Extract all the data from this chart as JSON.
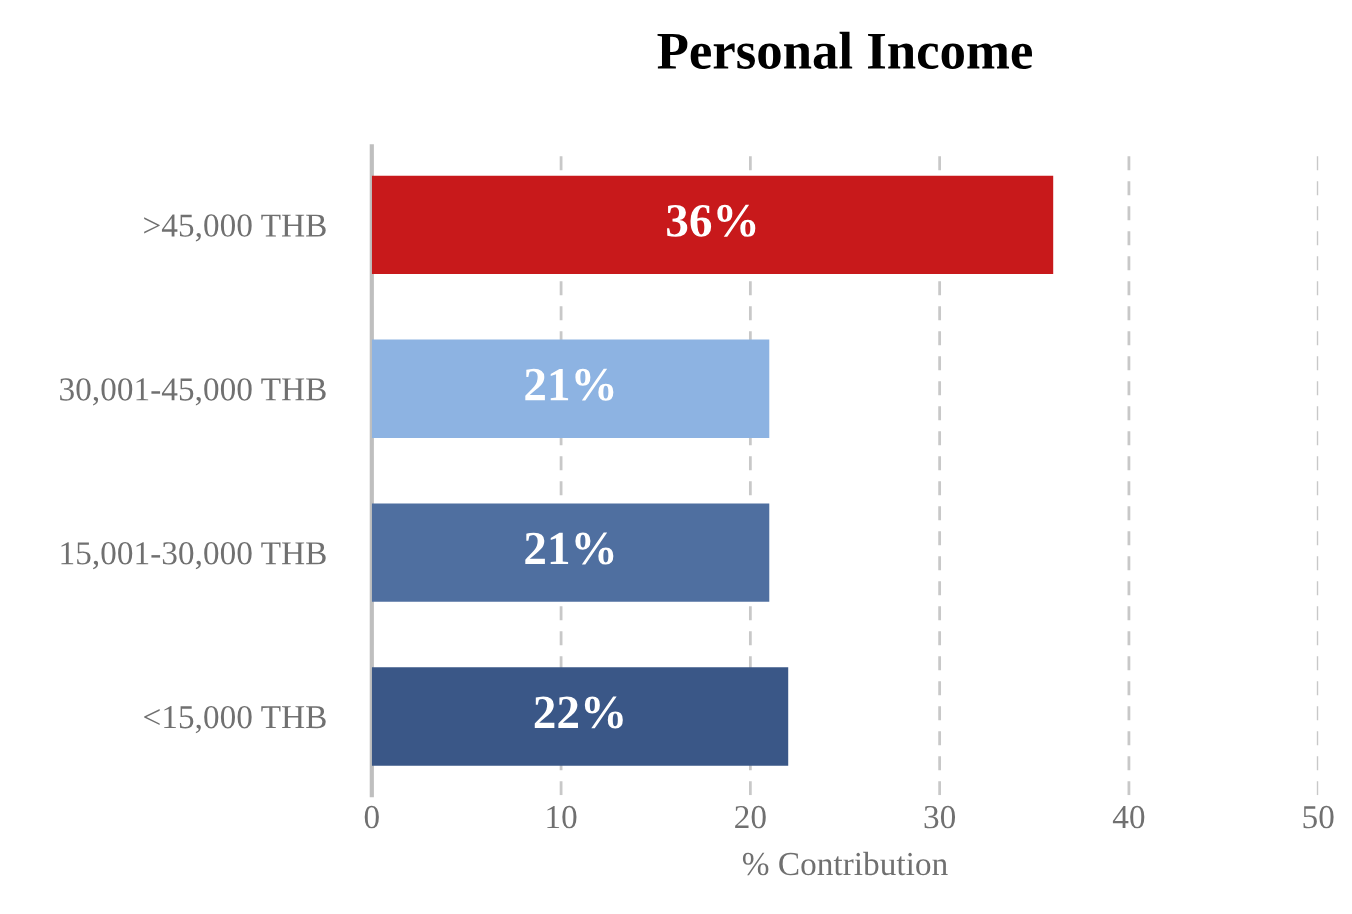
{
  "chart_data": {
    "type": "bar",
    "orientation": "horizontal",
    "title": "Personal Income",
    "xlabel": "% Contribution",
    "categories": [
      ">45,000 THB",
      "30,001-45,000 THB",
      "15,001-30,000 THB",
      "<15,000 THB"
    ],
    "values": [
      36,
      21,
      21,
      22
    ],
    "colors": [
      "#c8191b",
      "#8db3e2",
      "#4f6fa0",
      "#3a5787"
    ],
    "value_labels": [
      "36%",
      "21%",
      "21%",
      "22%"
    ],
    "xlim": [
      0,
      50
    ],
    "xticks": [
      0,
      10,
      20,
      30,
      40,
      50
    ],
    "grid": "x"
  }
}
